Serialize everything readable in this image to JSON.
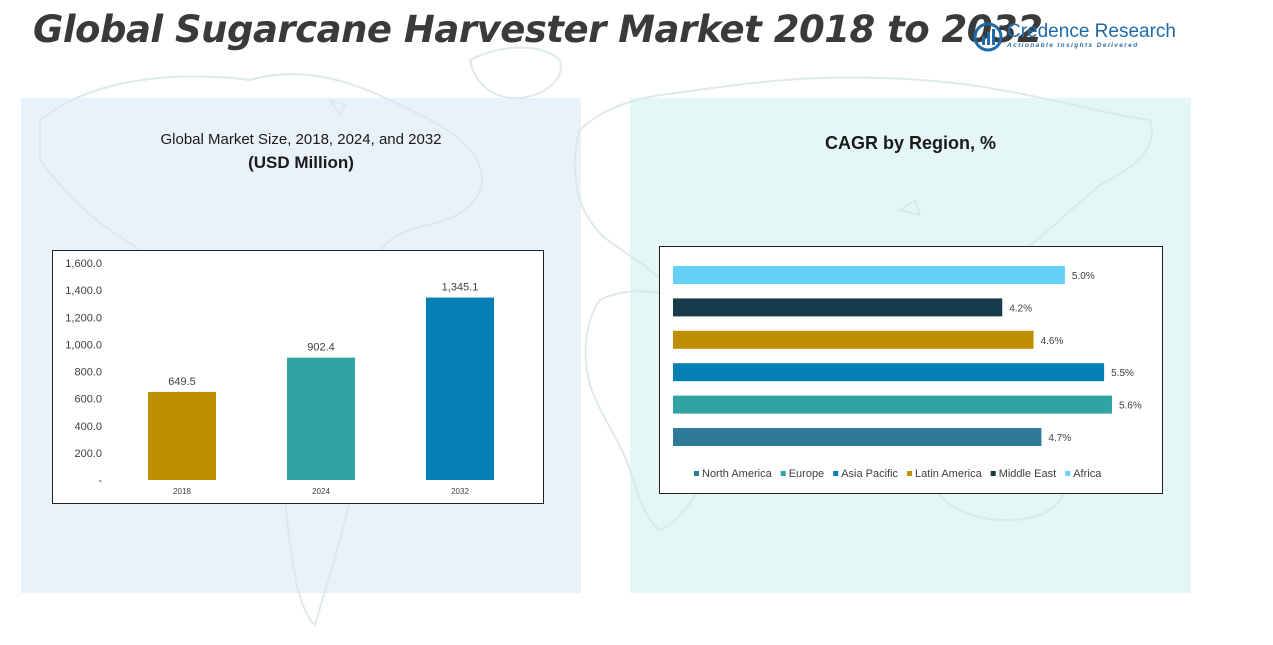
{
  "header": {
    "title": "Global Sugarcane Harvester Market 2018 to 2032",
    "brand_name": "Credence Research",
    "brand_tagline": "Actionable Insights Delivered"
  },
  "colors": {
    "map": "#dde8ea",
    "title": "#3a3a3a",
    "brand": "#1e6aa8"
  },
  "chart_data": [
    {
      "type": "bar",
      "title": "Global Market Size, 2018, 2024, and 2032",
      "subtitle": "(USD Million)",
      "categories": [
        "2018",
        "2024",
        "2032"
      ],
      "values": [
        649.5,
        902.4,
        1345.1
      ],
      "value_labels": [
        "649.5",
        "902.4",
        "1,345.1"
      ],
      "colors": [
        "#bf8f00",
        "#31a3a3",
        "#0580b4"
      ],
      "yticks": [
        "-",
        "200.0",
        "400.0",
        "600.0",
        "800.0",
        "1,000.0",
        "1,200.0",
        "1,400.0",
        "1,600.0"
      ],
      "ylim": [
        0,
        1600
      ],
      "grid": false
    },
    {
      "type": "bar",
      "orientation": "horizontal",
      "title": "CAGR by Region, %",
      "series": [
        {
          "name": "North America",
          "value": 4.7,
          "label": "4.7%",
          "color": "#2e7a99"
        },
        {
          "name": "Europe",
          "value": 5.6,
          "label": "5.6%",
          "color": "#31a3a3"
        },
        {
          "name": "Asia Pacific",
          "value": 5.5,
          "label": "5.5%",
          "color": "#0580b4"
        },
        {
          "name": "Latin America",
          "value": 4.6,
          "label": "4.6%",
          "color": "#bf8f00"
        },
        {
          "name": "Middle East",
          "value": 4.2,
          "label": "4.2%",
          "color": "#173b4b"
        },
        {
          "name": "Africa",
          "value": 5.0,
          "label": "5.0%",
          "color": "#63d2f6"
        }
      ],
      "xlim": [
        0,
        6.2
      ],
      "legend_position": "bottom",
      "grid": false
    }
  ]
}
